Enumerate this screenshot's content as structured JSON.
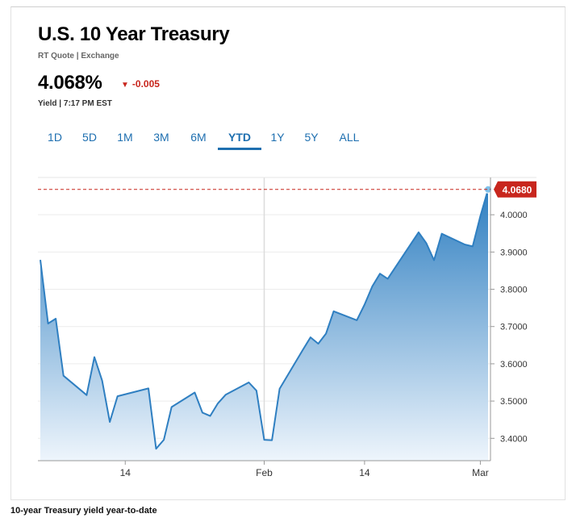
{
  "header": {
    "title": "U.S. 10 Year Treasury",
    "subtitle": "RT Quote | Exchange",
    "price": "4.068%",
    "change": "-0.005",
    "meta": "Yield | 7:17 PM EST"
  },
  "tabs": [
    {
      "label": "1D",
      "active": false
    },
    {
      "label": "5D",
      "active": false
    },
    {
      "label": "1M",
      "active": false
    },
    {
      "label": "3M",
      "active": false
    },
    {
      "label": "6M",
      "active": false
    },
    {
      "label": "YTD",
      "active": true
    },
    {
      "label": "1Y",
      "active": false
    },
    {
      "label": "5Y",
      "active": false
    },
    {
      "label": "ALL",
      "active": false
    }
  ],
  "colors": {
    "line": "#2f7fc1",
    "fill_top": "#2f7fc1",
    "fill_bottom": "#eef5fc",
    "down": "#c8261d",
    "tab": "#1e6fb0"
  },
  "caption": "10-year Treasury yield year-to-date",
  "chart_data": {
    "type": "area",
    "x": [
      "Jan 3",
      "Jan 4",
      "Jan 5",
      "Jan 6",
      "Jan 9",
      "Jan 10",
      "Jan 11",
      "Jan 12",
      "Jan 13",
      "Jan 17",
      "Jan 18",
      "Jan 19",
      "Jan 20",
      "Jan 23",
      "Jan 24",
      "Jan 25",
      "Jan 26",
      "Jan 27",
      "Jan 30",
      "Jan 31",
      "Feb 1",
      "Feb 2",
      "Feb 3",
      "Feb 6",
      "Feb 7",
      "Feb 8",
      "Feb 9",
      "Feb 10",
      "Feb 13",
      "Feb 14",
      "Feb 15",
      "Feb 16",
      "Feb 17",
      "Feb 21",
      "Feb 22",
      "Feb 23",
      "Feb 24",
      "Feb 27",
      "Feb 28",
      "Mar 1",
      "Mar 2"
    ],
    "values": [
      3.879,
      3.708,
      3.721,
      3.568,
      3.516,
      3.618,
      3.555,
      3.444,
      3.513,
      3.534,
      3.372,
      3.396,
      3.484,
      3.523,
      3.469,
      3.46,
      3.494,
      3.517,
      3.55,
      3.528,
      3.396,
      3.395,
      3.533,
      3.637,
      3.671,
      3.654,
      3.681,
      3.741,
      3.717,
      3.759,
      3.808,
      3.842,
      3.828,
      3.953,
      3.924,
      3.878,
      3.949,
      3.92,
      3.915,
      3.996,
      4.068
    ],
    "last_value": "4.0680",
    "reference_line": 4.068,
    "y_ticks": [
      "4.0000",
      "3.9000",
      "3.8000",
      "3.7000",
      "3.6000",
      "3.5000",
      "3.4000"
    ],
    "y_tick_values": [
      4.0,
      3.9,
      3.8,
      3.7,
      3.6,
      3.5,
      3.4
    ],
    "x_ticks": [
      {
        "label": "14",
        "date": "Jan 14"
      },
      {
        "label": "Feb",
        "date": "Feb 1"
      },
      {
        "label": "14",
        "date": "Feb 14"
      },
      {
        "label": "Mar",
        "date": "Mar 1"
      }
    ],
    "x_range": [
      "Jan 3",
      "Mar 2"
    ],
    "ylim": [
      3.34,
      4.1
    ],
    "grid": true,
    "title": "",
    "xlabel": "",
    "ylabel": ""
  }
}
